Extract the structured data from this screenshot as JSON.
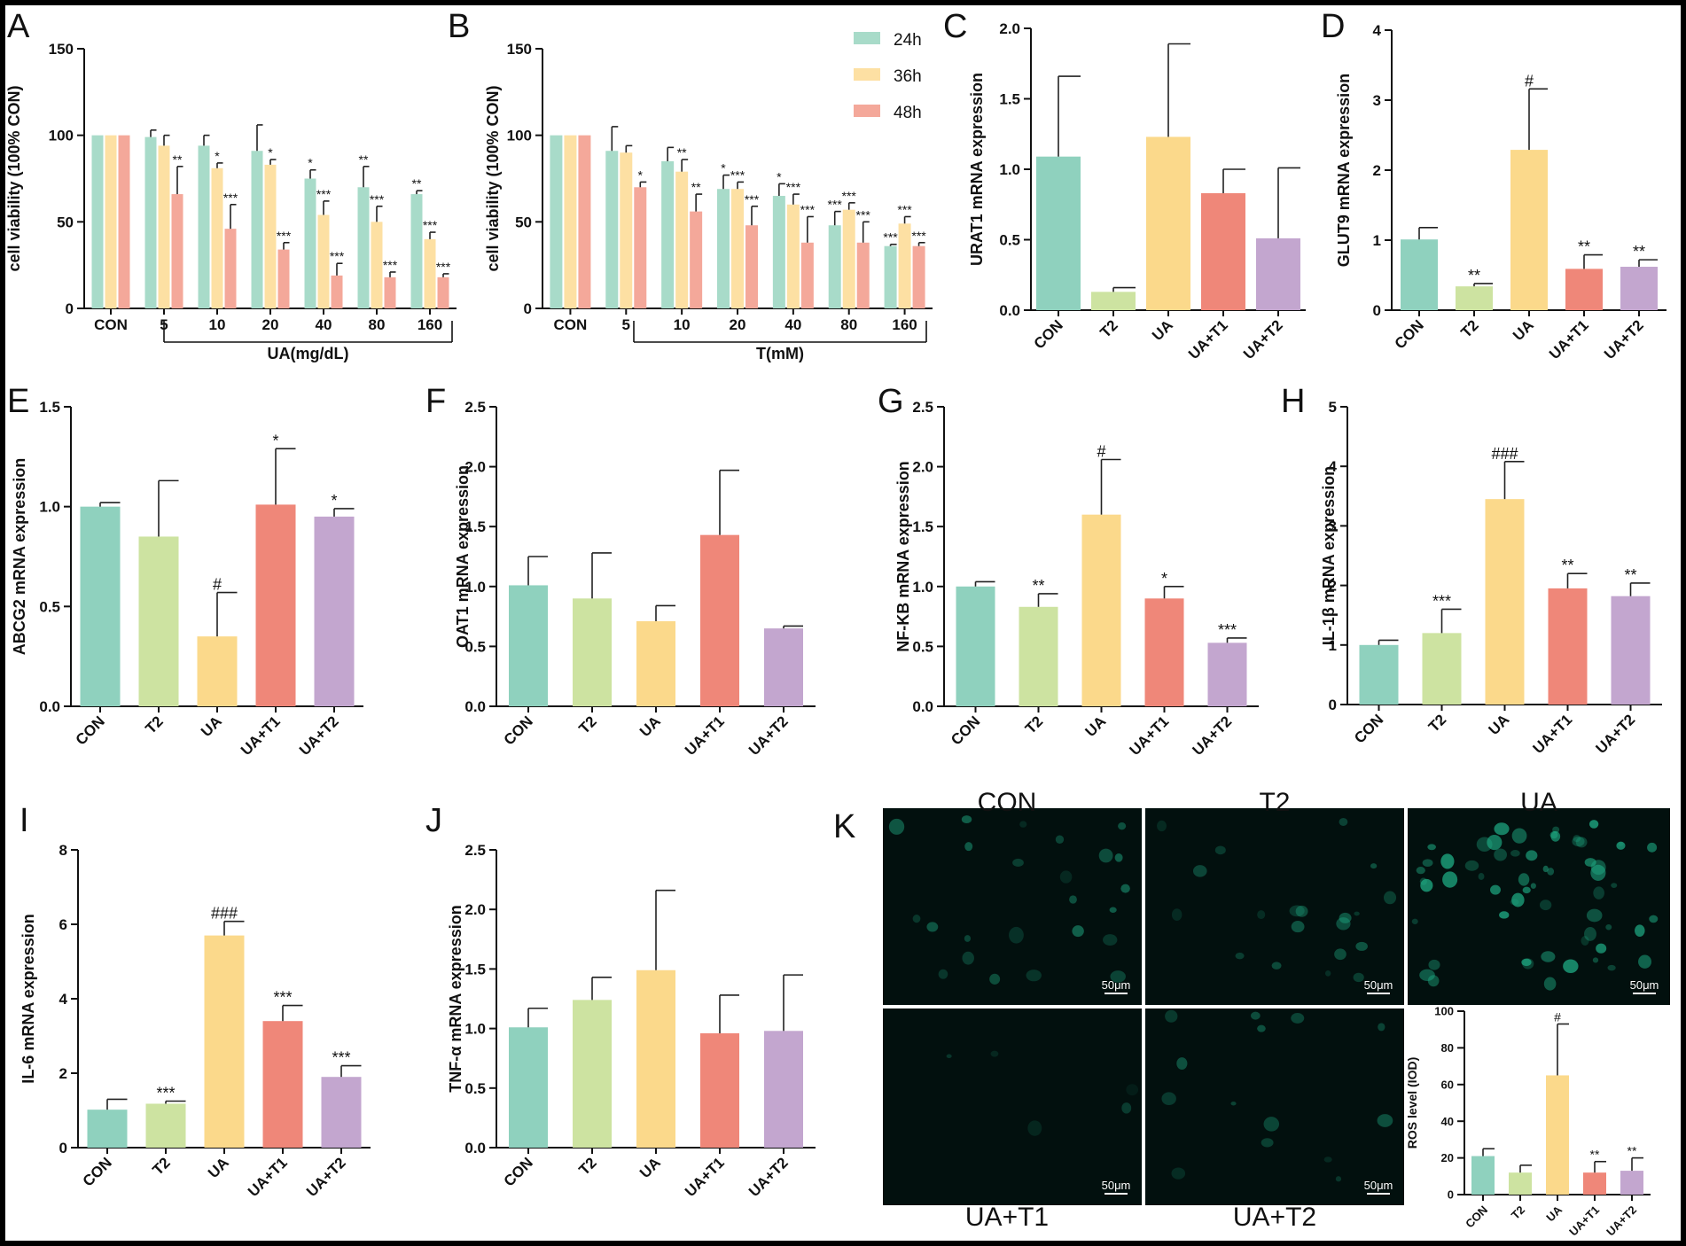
{
  "colors": {
    "24h": "#a8dbc9",
    "36h": "#fde0a3",
    "48h": "#f4a89a",
    "CON": "#8fd1be",
    "T2": "#cde3a1",
    "UA": "#fbd98b",
    "UA+T1": "#ef8779",
    "UA+T2": "#c3a6cf",
    "axis": "#111111",
    "micrograph": "#02100e",
    "cell": "#1fae86"
  },
  "chart_data": [
    {
      "panel": "A",
      "type": "bar",
      "grouped": true,
      "ylabel": "cell viability (100% CON)",
      "xlabel": "UA(mg/dL)",
      "ylim": [
        0,
        150
      ],
      "yticks": [
        0,
        50,
        100,
        150
      ],
      "categories": [
        "CON",
        "5",
        "10",
        "20",
        "40",
        "80",
        "160"
      ],
      "series": [
        {
          "name": "24h",
          "values": [
            100,
            99,
            94,
            91,
            75,
            70,
            66
          ],
          "errors": [
            0,
            4,
            6,
            15,
            5,
            12,
            2
          ],
          "sig": [
            "",
            "",
            "",
            "",
            "*",
            "**",
            "**"
          ]
        },
        {
          "name": "36h",
          "values": [
            100,
            94,
            81,
            83,
            54,
            50,
            40
          ],
          "errors": [
            0,
            6,
            3,
            3,
            8,
            9,
            4
          ],
          "sig": [
            "",
            "",
            "*",
            "*",
            "***",
            "***",
            "***"
          ]
        },
        {
          "name": "48h",
          "values": [
            100,
            66,
            46,
            34,
            19,
            18,
            18
          ],
          "errors": [
            0,
            16,
            14,
            4,
            7,
            3,
            2
          ],
          "sig": [
            "",
            "**",
            "***",
            "***",
            "***",
            "***",
            "***"
          ]
        }
      ]
    },
    {
      "panel": "B",
      "type": "bar",
      "grouped": true,
      "ylabel": "cell viability (100% CON)",
      "xlabel": "T(mM)",
      "ylim": [
        0,
        150
      ],
      "yticks": [
        0,
        50,
        100,
        150
      ],
      "categories": [
        "CON",
        "5",
        "10",
        "20",
        "40",
        "80",
        "160"
      ],
      "legend": [
        "24h",
        "36h",
        "48h"
      ],
      "series": [
        {
          "name": "24h",
          "values": [
            100,
            91,
            85,
            69,
            65,
            48,
            36
          ],
          "errors": [
            0,
            14,
            8,
            8,
            7,
            8,
            1
          ],
          "sig": [
            "",
            "",
            "",
            "*",
            "*",
            "***",
            "***"
          ]
        },
        {
          "name": "36h",
          "values": [
            100,
            90,
            79,
            69,
            60,
            57,
            49
          ],
          "errors": [
            0,
            4,
            7,
            4,
            6,
            4,
            4
          ],
          "sig": [
            "",
            "",
            "**",
            "***",
            "***",
            "***",
            "***"
          ]
        },
        {
          "name": "48h",
          "values": [
            100,
            70,
            56,
            48,
            38,
            38,
            36
          ],
          "errors": [
            0,
            3,
            10,
            11,
            15,
            12,
            2
          ],
          "sig": [
            "",
            "*",
            "**",
            "***",
            "***",
            "***",
            "***"
          ]
        }
      ]
    },
    {
      "panel": "C",
      "type": "bar",
      "ylabel": "URAT1 mRNA expression",
      "ylim": [
        0,
        2.0
      ],
      "yticks": [
        "0.0",
        "0.5",
        "1.0",
        "1.5",
        "2.0"
      ],
      "categories": [
        "CON",
        "T2",
        "UA",
        "UA+T1",
        "UA+T2"
      ],
      "values": [
        1.09,
        0.13,
        1.23,
        0.83,
        0.51
      ],
      "errors": [
        0.57,
        0.03,
        0.66,
        0.17,
        0.5
      ],
      "sig": [
        "",
        "",
        "",
        "",
        ""
      ]
    },
    {
      "panel": "D",
      "type": "bar",
      "ylabel": "GLUT9 mRNA expression",
      "ylim": [
        0,
        4
      ],
      "yticks": [
        "0",
        "1",
        "2",
        "3",
        "4"
      ],
      "categories": [
        "CON",
        "T2",
        "UA",
        "UA+T1",
        "UA+T2"
      ],
      "values": [
        1.01,
        0.34,
        2.29,
        0.59,
        0.62
      ],
      "errors": [
        0.17,
        0.04,
        0.87,
        0.2,
        0.1
      ],
      "sig": [
        "",
        "**",
        "#",
        "**",
        "**"
      ]
    },
    {
      "panel": "E",
      "type": "bar",
      "ylabel": "ABCG2 mRNA expression",
      "ylim": [
        0,
        1.5
      ],
      "yticks": [
        "0.0",
        "0.5",
        "1.0",
        "1.5"
      ],
      "categories": [
        "CON",
        "T2",
        "UA",
        "UA+T1",
        "UA+T2"
      ],
      "values": [
        1.0,
        0.85,
        0.35,
        1.01,
        0.95
      ],
      "errors": [
        0.02,
        0.28,
        0.22,
        0.28,
        0.04
      ],
      "sig": [
        "",
        "",
        "#",
        "*",
        "*"
      ]
    },
    {
      "panel": "F",
      "type": "bar",
      "ylabel": "OAT1 mRNA expression",
      "ylim": [
        0,
        2.5
      ],
      "yticks": [
        "0.0",
        "0.5",
        "1.0",
        "1.5",
        "2.0",
        "2.5"
      ],
      "categories": [
        "CON",
        "T2",
        "UA",
        "UA+T1",
        "UA+T2"
      ],
      "values": [
        1.01,
        0.9,
        0.71,
        1.43,
        0.65
      ],
      "errors": [
        0.24,
        0.38,
        0.13,
        0.54,
        0.02
      ],
      "sig": [
        "",
        "",
        "",
        "",
        ""
      ]
    },
    {
      "panel": "G",
      "type": "bar",
      "ylabel": "NF-KB mRNA expression",
      "ylim": [
        0,
        2.5
      ],
      "yticks": [
        "0.0",
        "0.5",
        "1.0",
        "1.5",
        "2.0",
        "2.5"
      ],
      "categories": [
        "CON",
        "T2",
        "UA",
        "UA+T1",
        "UA+T2"
      ],
      "values": [
        1.0,
        0.83,
        1.6,
        0.9,
        0.53
      ],
      "errors": [
        0.04,
        0.11,
        0.46,
        0.1,
        0.04
      ],
      "sig": [
        "",
        "**",
        "#",
        "*",
        "***"
      ]
    },
    {
      "panel": "H",
      "type": "bar",
      "ylabel": "IL-1β mRNA expression",
      "ylim": [
        0,
        5
      ],
      "yticks": [
        "0",
        "1",
        "2",
        "3",
        "4",
        "5"
      ],
      "categories": [
        "CON",
        "T2",
        "UA",
        "UA+T1",
        "UA+T2"
      ],
      "values": [
        1.0,
        1.2,
        3.45,
        1.95,
        1.82
      ],
      "errors": [
        0.08,
        0.4,
        0.63,
        0.25,
        0.22
      ],
      "sig": [
        "",
        "***",
        "###",
        "**",
        "**"
      ]
    },
    {
      "panel": "I",
      "type": "bar",
      "ylabel": "IL-6 mRNA expression",
      "ylim": [
        0,
        8
      ],
      "yticks": [
        "0",
        "2",
        "4",
        "6",
        "8"
      ],
      "categories": [
        "CON",
        "T2",
        "UA",
        "UA+T1",
        "UA+T2"
      ],
      "values": [
        1.02,
        1.18,
        5.7,
        3.4,
        1.9
      ],
      "errors": [
        0.28,
        0.07,
        0.38,
        0.42,
        0.3
      ],
      "sig": [
        "",
        "***",
        "###",
        "***",
        "***"
      ]
    },
    {
      "panel": "J",
      "type": "bar",
      "ylabel": "TNF-α mRNA expression",
      "ylim": [
        0,
        2.5
      ],
      "yticks": [
        "0.0",
        "0.5",
        "1.0",
        "1.5",
        "2.0",
        "2.5"
      ],
      "categories": [
        "CON",
        "T2",
        "UA",
        "UA+T1",
        "UA+T2"
      ],
      "values": [
        1.01,
        1.24,
        1.49,
        0.96,
        0.98
      ],
      "errors": [
        0.16,
        0.19,
        0.67,
        0.32,
        0.47
      ],
      "sig": [
        "",
        "",
        "",
        "",
        ""
      ]
    },
    {
      "panel": "K",
      "type": "bar",
      "ylabel": "ROS level (IOD)",
      "ylim": [
        0,
        100
      ],
      "yticks": [
        "0",
        "20",
        "40",
        "60",
        "80",
        "100"
      ],
      "categories": [
        "CON",
        "T2",
        "UA",
        "UA+T1",
        "UA+T2"
      ],
      "values": [
        21,
        12,
        65,
        12,
        13
      ],
      "errors": [
        4,
        4,
        28,
        6,
        7
      ],
      "sig": [
        "",
        "",
        "#",
        "**",
        "**"
      ]
    }
  ],
  "panel_k": {
    "letter": "K",
    "images": [
      {
        "label": "CON",
        "scale": "50μm"
      },
      {
        "label": "T2",
        "scale": "50μm"
      },
      {
        "label": "UA",
        "scale": "50μm"
      },
      {
        "label": "UA+T1",
        "scale": "50μm"
      },
      {
        "label": "UA+T2",
        "scale": "50μm"
      }
    ]
  }
}
